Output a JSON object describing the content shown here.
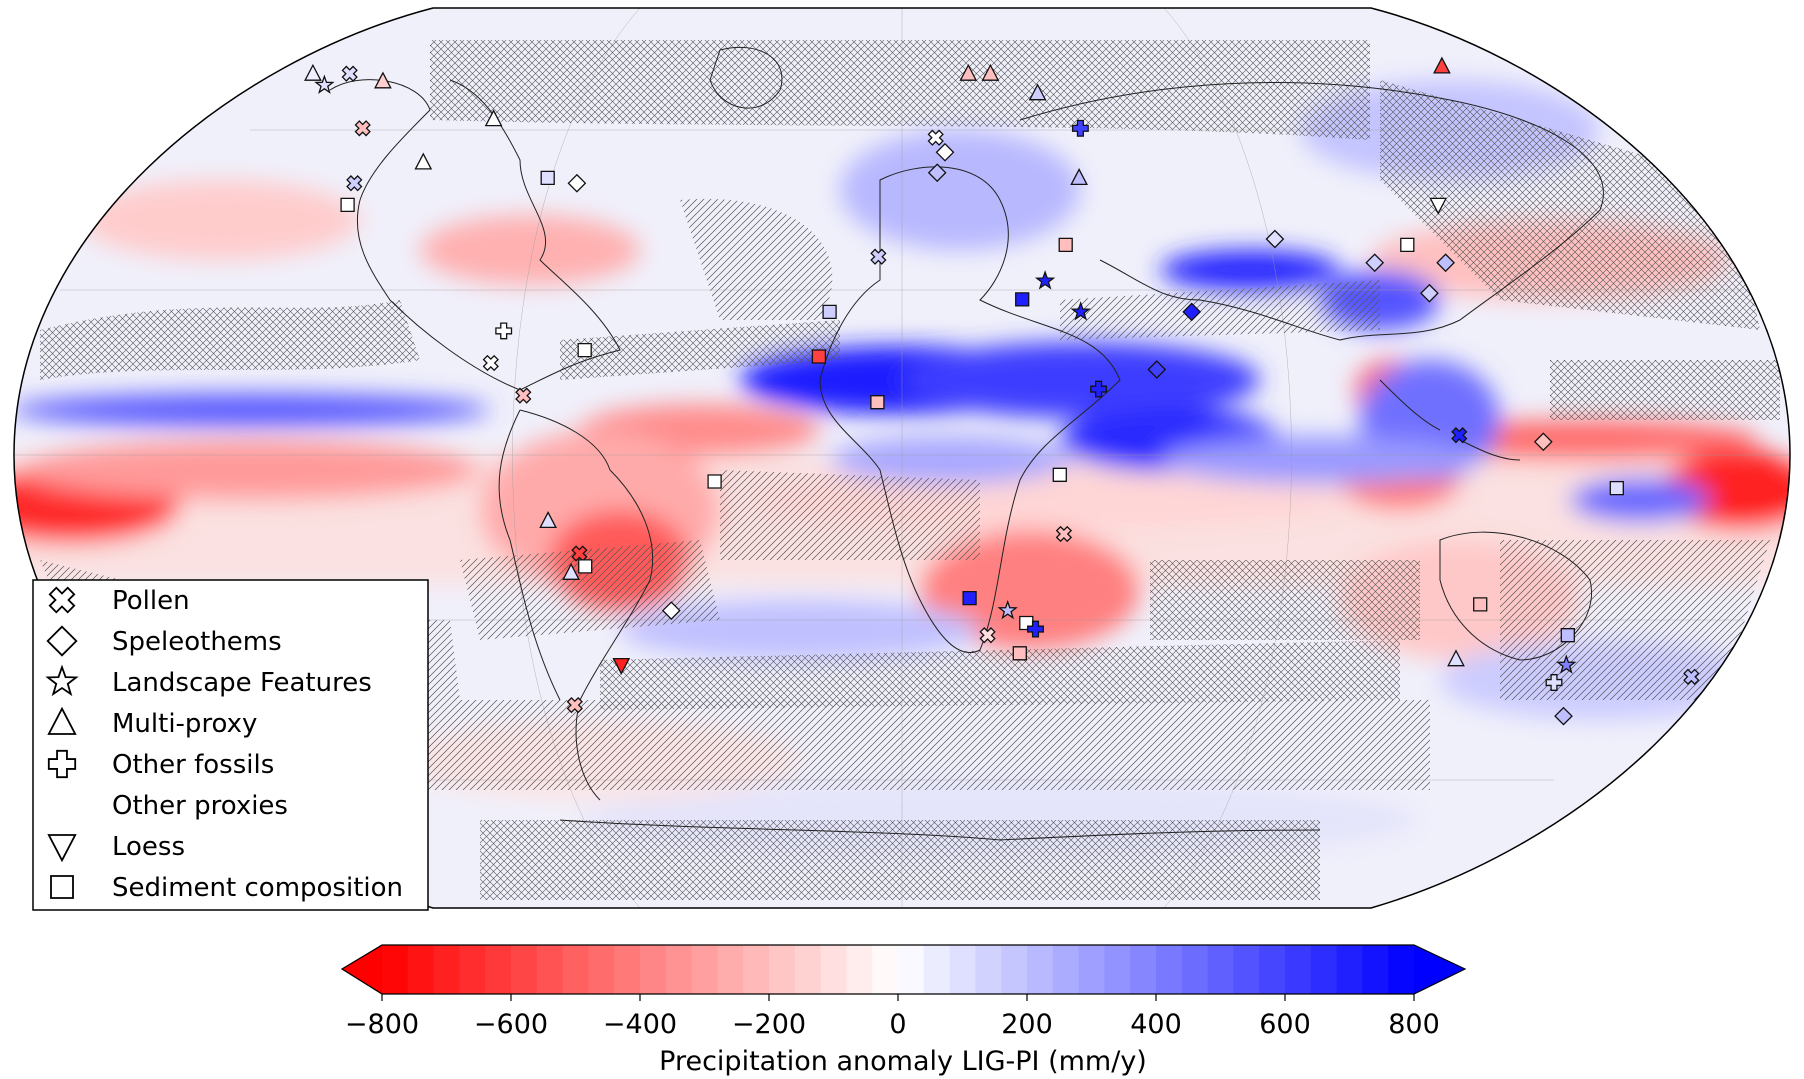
{
  "figure": {
    "projection": "Robinson",
    "map_background": "precipitation anomaly field (red = negative, blue = positive), hatched areas over non-significant regions",
    "colors": {
      "negative": "#ff0000",
      "zero": "#ffffff",
      "positive": "#0000ff"
    }
  },
  "legend": {
    "items": [
      {
        "label": "Pollen",
        "marker": "x-cross"
      },
      {
        "label": "Speleothems",
        "marker": "diamond"
      },
      {
        "label": "Landscape Features",
        "marker": "star"
      },
      {
        "label": "Multi-proxy",
        "marker": "triangle-up"
      },
      {
        "label": "Other fossils",
        "marker": "plus"
      },
      {
        "label": "Other proxies",
        "marker": "circle"
      },
      {
        "label": "Loess",
        "marker": "triangle-down"
      },
      {
        "label": "Sediment composition",
        "marker": "square"
      }
    ]
  },
  "colorbar": {
    "label": "Precipitation anomaly LIG-PI (mm/y)",
    "min": -800,
    "max": 800,
    "ticks": [
      "−800",
      "−600",
      "−400",
      "−200",
      "0",
      "200",
      "400",
      "600",
      "800"
    ],
    "extend": "both",
    "levels": 40
  },
  "chart_data": {
    "type": "heatmap",
    "title": "",
    "colorbar_label": "Precipitation anomaly LIG-PI (mm/y)",
    "range": [
      -800,
      800
    ],
    "proxy_sites": [
      {
        "type": "Other proxies",
        "lon": -45,
        "lat": 76,
        "value": 0
      },
      {
        "type": "Other proxies",
        "lon": -40,
        "lat": 74,
        "value": 0
      },
      {
        "type": "Multi-proxy",
        "lon": -160,
        "lat": 68,
        "value": 50
      },
      {
        "type": "Pollen",
        "lon": -150,
        "lat": 68,
        "value": 100
      },
      {
        "type": "Landscape Features",
        "lon": -152,
        "lat": 65,
        "value": 100
      },
      {
        "type": "Multi-proxy",
        "lon": -138,
        "lat": 66,
        "value": -150
      },
      {
        "type": "Pollen",
        "lon": -130,
        "lat": 55,
        "value": -200
      },
      {
        "type": "Multi-proxy",
        "lon": -100,
        "lat": 57,
        "value": 0
      },
      {
        "type": "Multi-proxy",
        "lon": -110,
        "lat": 48,
        "value": 0
      },
      {
        "type": "Sediment composition",
        "lon": -80,
        "lat": 45,
        "value": 100
      },
      {
        "type": "Speleothems",
        "lon": -73,
        "lat": 44,
        "value": 0
      },
      {
        "type": "Pollen",
        "lon": -123,
        "lat": 44,
        "value": 150
      },
      {
        "type": "Sediment composition",
        "lon": -122,
        "lat": 40,
        "value": 0
      },
      {
        "type": "Other fossils",
        "lon": -82,
        "lat": 19,
        "value": 0
      },
      {
        "type": "Sediment composition",
        "lon": -65,
        "lat": 16,
        "value": 0
      },
      {
        "type": "Pollen",
        "lon": -84,
        "lat": 14,
        "value": 0
      },
      {
        "type": "Pollen",
        "lon": -77,
        "lat": 9,
        "value": -200
      },
      {
        "type": "Sediment composition",
        "lon": -38,
        "lat": -4,
        "value": 0
      },
      {
        "type": "Multi-proxy",
        "lon": -72,
        "lat": -10,
        "value": 100
      },
      {
        "type": "Pollen",
        "lon": -66,
        "lat": -15,
        "value": -600
      },
      {
        "type": "Sediment composition",
        "lon": -65,
        "lat": -17,
        "value": 0
      },
      {
        "type": "Multi-proxy",
        "lon": -68,
        "lat": -18,
        "value": 100
      },
      {
        "type": "Speleothems",
        "lon": -48,
        "lat": -24,
        "value": 0
      },
      {
        "type": "Loess",
        "lon": -60,
        "lat": -33,
        "value": -700
      },
      {
        "type": "Pollen",
        "lon": -72,
        "lat": -40,
        "value": -200
      },
      {
        "type": "Multi-proxy",
        "lon": 18,
        "lat": 68,
        "value": -200
      },
      {
        "type": "Multi-proxy",
        "lon": 24,
        "lat": 68,
        "value": -200
      },
      {
        "type": "Other proxies",
        "lon": 65,
        "lat": 70,
        "value": 200
      },
      {
        "type": "Multi-proxy",
        "lon": 150,
        "lat": 70,
        "value": -600
      },
      {
        "type": "Multi-proxy",
        "lon": 35,
        "lat": 63,
        "value": 150
      },
      {
        "type": "Other proxies",
        "lon": 50,
        "lat": 60,
        "value": 0
      },
      {
        "type": "Other proxies",
        "lon": 40,
        "lat": 56,
        "value": 600
      },
      {
        "type": "Other fossils",
        "lon": 43,
        "lat": 55,
        "value": 600
      },
      {
        "type": "Other proxies",
        "lon": 50,
        "lat": 55,
        "value": 600
      },
      {
        "type": "Pollen",
        "lon": 8,
        "lat": 53,
        "value": 0
      },
      {
        "type": "Speleothems",
        "lon": 10,
        "lat": 50,
        "value": 0
      },
      {
        "type": "Speleothems",
        "lon": 8,
        "lat": 46,
        "value": 200
      },
      {
        "type": "Other proxies",
        "lon": 15,
        "lat": 44,
        "value": 200
      },
      {
        "type": "Multi-proxy",
        "lon": 40,
        "lat": 45,
        "value": 200
      },
      {
        "type": "Sediment composition",
        "lon": 35,
        "lat": 33,
        "value": -200
      },
      {
        "type": "Landscape Features",
        "lon": 30,
        "lat": 27,
        "value": 700
      },
      {
        "type": "Sediment composition",
        "lon": 25,
        "lat": 24,
        "value": 700
      },
      {
        "type": "Landscape Features",
        "lon": 37,
        "lat": 22,
        "value": 700
      },
      {
        "type": "Pollen",
        "lon": -5,
        "lat": 31,
        "value": 150
      },
      {
        "type": "Sediment composition",
        "lon": -15,
        "lat": 22,
        "value": 150
      },
      {
        "type": "Sediment composition",
        "lon": -17,
        "lat": 15,
        "value": -600
      },
      {
        "type": "Sediment composition",
        "lon": -5,
        "lat": 8,
        "value": -200
      },
      {
        "type": "Speleothems",
        "lon": 60,
        "lat": 22,
        "value": 700
      },
      {
        "type": "Speleothems",
        "lon": 52,
        "lat": 13,
        "value": 600
      },
      {
        "type": "Other fossils",
        "lon": 40,
        "lat": 10,
        "value": 700
      },
      {
        "type": "Sediment composition",
        "lon": 32,
        "lat": -3,
        "value": 0
      },
      {
        "type": "Other proxies",
        "lon": 65,
        "lat": 31,
        "value": 600
      },
      {
        "type": "Speleothems",
        "lon": 80,
        "lat": 34,
        "value": 100
      },
      {
        "type": "Speleothems",
        "lon": 100,
        "lat": 30,
        "value": 150
      },
      {
        "type": "Sediment composition",
        "lon": 108,
        "lat": 33,
        "value": 0
      },
      {
        "type": "Loess",
        "lon": 118,
        "lat": 40,
        "value": 0
      },
      {
        "type": "Speleothems",
        "lon": 110,
        "lat": 25,
        "value": 150
      },
      {
        "type": "Speleothems",
        "lon": 115,
        "lat": 30,
        "value": 200
      },
      {
        "type": "Pollen",
        "lon": 113,
        "lat": 3,
        "value": 700
      },
      {
        "type": "Speleothems",
        "lon": 130,
        "lat": 2,
        "value": -200
      },
      {
        "type": "Sediment composition",
        "lon": 145,
        "lat": -5,
        "value": 100
      },
      {
        "type": "Pollen",
        "lon": 170,
        "lat": -35,
        "value": 200
      },
      {
        "type": "Sediment composition",
        "lon": 120,
        "lat": -23,
        "value": -200
      },
      {
        "type": "Multi-proxy",
        "lon": 118,
        "lat": -32,
        "value": 100
      },
      {
        "type": "Sediment composition",
        "lon": 140,
        "lat": -28,
        "value": 200
      },
      {
        "type": "Landscape Features",
        "lon": 142,
        "lat": -33,
        "value": 400
      },
      {
        "type": "Other fossils",
        "lon": 141,
        "lat": -36,
        "value": 100
      },
      {
        "type": "Speleothems",
        "lon": 147,
        "lat": -42,
        "value": 200
      },
      {
        "type": "Sediment composition",
        "lon": 14,
        "lat": -22,
        "value": 700
      },
      {
        "type": "Landscape Features",
        "lon": 22,
        "lat": -24,
        "value": 200
      },
      {
        "type": "Sediment composition",
        "lon": 26,
        "lat": -26,
        "value": 0
      },
      {
        "type": "Other fossils",
        "lon": 28,
        "lat": -27,
        "value": 700
      },
      {
        "type": "Pollen",
        "lon": 18,
        "lat": -28,
        "value": -100
      },
      {
        "type": "Sediment composition",
        "lon": 25,
        "lat": -31,
        "value": -200
      },
      {
        "type": "Pollen",
        "lon": 33,
        "lat": -12,
        "value": -200
      }
    ]
  }
}
